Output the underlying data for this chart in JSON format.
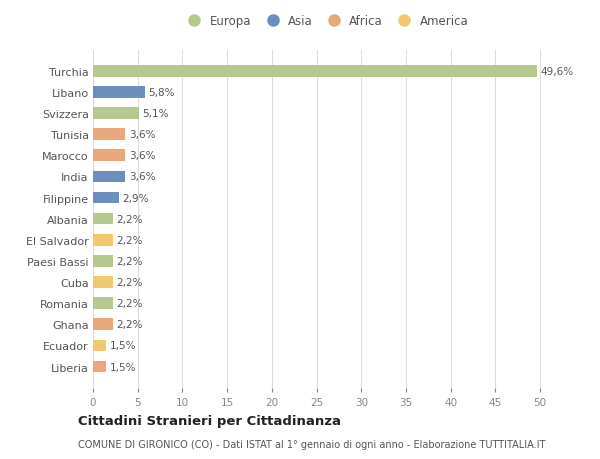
{
  "categories": [
    "Turchia",
    "Libano",
    "Svizzera",
    "Tunisia",
    "Marocco",
    "India",
    "Filippine",
    "Albania",
    "El Salvador",
    "Paesi Bassi",
    "Cuba",
    "Romania",
    "Ghana",
    "Ecuador",
    "Liberia"
  ],
  "values": [
    49.6,
    5.8,
    5.1,
    3.6,
    3.6,
    3.6,
    2.9,
    2.2,
    2.2,
    2.2,
    2.2,
    2.2,
    2.2,
    1.5,
    1.5
  ],
  "labels": [
    "49,6%",
    "5,8%",
    "5,1%",
    "3,6%",
    "3,6%",
    "3,6%",
    "2,9%",
    "2,2%",
    "2,2%",
    "2,2%",
    "2,2%",
    "2,2%",
    "2,2%",
    "1,5%",
    "1,5%"
  ],
  "colors": [
    "#b5c98e",
    "#6b8ebf",
    "#b5c98e",
    "#e8a87c",
    "#e8a87c",
    "#6b8ebf",
    "#6b8ebf",
    "#b5c98e",
    "#f0c96e",
    "#b5c98e",
    "#f0c96e",
    "#b5c98e",
    "#e8a87c",
    "#f0c96e",
    "#e8a87c"
  ],
  "legend": [
    {
      "label": "Europa",
      "color": "#b5c98e"
    },
    {
      "label": "Asia",
      "color": "#6b8ebf"
    },
    {
      "label": "Africa",
      "color": "#e8a87c"
    },
    {
      "label": "America",
      "color": "#f0c96e"
    }
  ],
  "xlim": [
    0,
    52
  ],
  "xticks": [
    0,
    5,
    10,
    15,
    20,
    25,
    30,
    35,
    40,
    45,
    50
  ],
  "title1": "Cittadini Stranieri per Cittadinanza",
  "title2": "COMUNE DI GIRONICO (CO) - Dati ISTAT al 1° gennaio di ogni anno - Elaborazione TUTTITALIA.IT",
  "bg_color": "#ffffff",
  "grid_color": "#dddddd",
  "bar_height": 0.55,
  "label_fontsize": 7.5,
  "ytick_fontsize": 8,
  "xtick_fontsize": 7.5,
  "legend_fontsize": 8.5,
  "title1_fontsize": 9.5,
  "title2_fontsize": 7
}
